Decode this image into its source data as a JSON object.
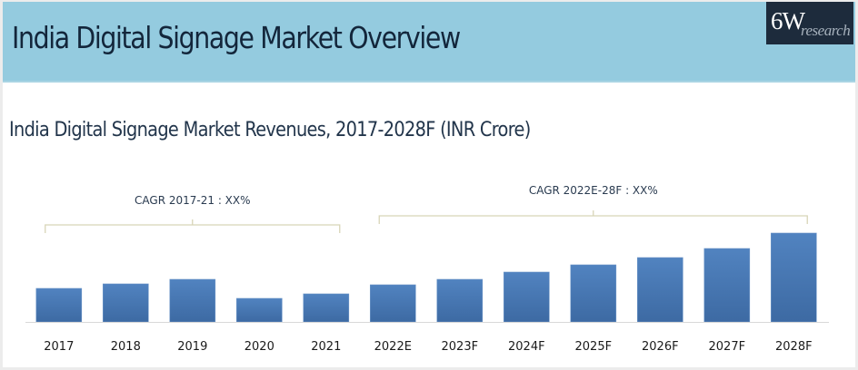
{
  "header": {
    "title": "India Digital Signage Market Overview",
    "logo_main": "6W",
    "logo_sub": "research"
  },
  "colors": {
    "header_bg": "#94cbdf",
    "bar": "#4a7ab6",
    "bracket": "#d8d5b8",
    "logo_bg": "#1d2b3c"
  },
  "chart_data": {
    "type": "bar",
    "title": "India Digital Signage Market Revenues, 2017-2028F (INR Crore)",
    "xlabel": "",
    "ylabel": "",
    "categories": [
      "2017",
      "2018",
      "2019",
      "2020",
      "2021",
      "2022E",
      "2023F",
      "2024F",
      "2025F",
      "2026F",
      "2027F",
      "2028F"
    ],
    "values": [
      37,
      42,
      47,
      26,
      31,
      41,
      47,
      55,
      63,
      71,
      81,
      98
    ],
    "value_units": "relative (no y-axis shown)",
    "ylim": [
      0,
      100
    ],
    "grid": false,
    "legend": "none",
    "annotations": [
      {
        "label": "CAGR 2017-21 : XX%",
        "from": "2017",
        "to": "2021"
      },
      {
        "label": "CAGR 2022E-28F : XX%",
        "from": "2022E",
        "to": "2028F"
      }
    ]
  }
}
